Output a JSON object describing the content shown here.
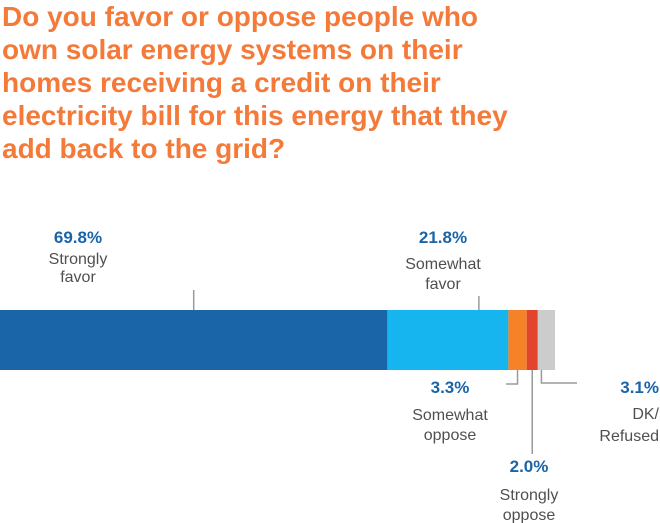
{
  "title": "Do you favor or oppose people who\nown solar energy systems on their\nhomes receiving a credit on their\nelectricity bill for this energy that they\nadd back to the grid?",
  "colors": {
    "title": "#f47a3a",
    "percent_text": "#1a64a8",
    "label_text": "#505050",
    "strongly_favor": "#1a64a8",
    "somewhat_favor": "#16b5ef",
    "somewhat_oppose": "#f58227",
    "strongly_oppose": "#e2452e",
    "dk_refused": "#cccccc"
  },
  "chart_data": {
    "type": "bar",
    "orientation": "horizontal-stacked",
    "categories": [
      "Strongly favor",
      "Somewhat favor",
      "Somewhat oppose",
      "Strongly oppose",
      "DK/ Refused"
    ],
    "values": [
      69.8,
      21.8,
      3.3,
      2.0,
      3.1
    ],
    "value_labels": [
      "69.8%",
      "21.8%",
      "3.3%",
      "2.0%",
      "3.1%"
    ],
    "label_lines": [
      [
        "Strongly",
        "favor"
      ],
      [
        "Somewhat",
        "favor"
      ],
      [
        "Somewhat",
        "oppose"
      ],
      [
        "Strongly",
        "oppose"
      ],
      [
        "DK/",
        "Refused"
      ]
    ],
    "title": "Do you favor or oppose people who own solar energy systems on their homes receiving a credit on their electricity bill for this energy that they add back to the grid?"
  }
}
